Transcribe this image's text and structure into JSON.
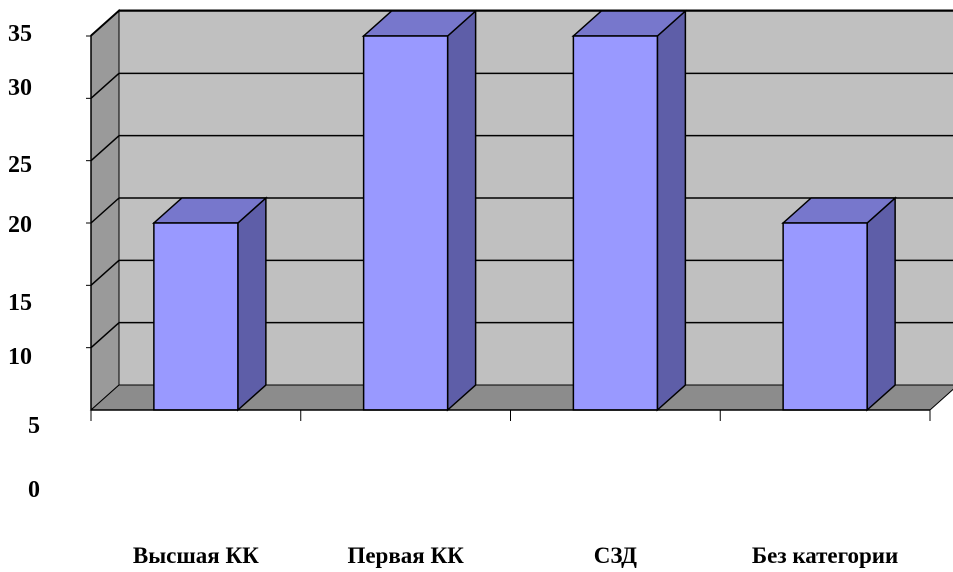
{
  "chart_data": {
    "type": "bar",
    "categories": [
      "Высшая КК",
      "Первая КК",
      "СЗД",
      "Без категории"
    ],
    "values": [
      20,
      35,
      35,
      20
    ],
    "ylim": [
      5,
      35
    ],
    "yticks": [
      "35",
      "30",
      "25",
      "20",
      "15",
      "10",
      "5",
      "0"
    ],
    "grid": true,
    "three_d": true,
    "title": "",
    "xlabel": "",
    "ylabel": "",
    "colors": {
      "bar_front": "#9999ff",
      "bar_side": "#5e5ea8",
      "bar_top": "#7777cc",
      "plot_wall": "#c0c0c0",
      "side_wall": "#9a9a9a",
      "floor": "#8c8c8c",
      "outline": "#000000"
    }
  }
}
